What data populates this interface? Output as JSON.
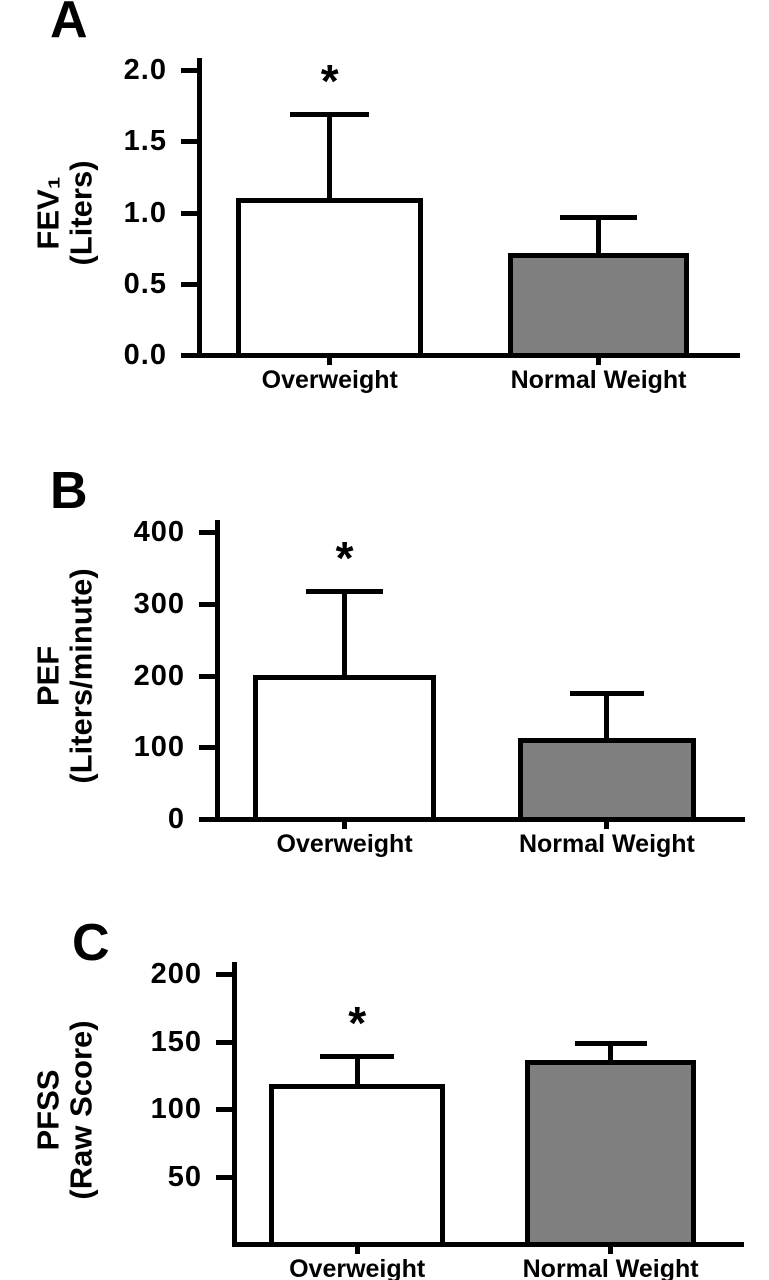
{
  "figure": {
    "background": "#ffffff",
    "axis_color": "#000000",
    "significance_marker": "*"
  },
  "chart_data": [
    {
      "type": "bar",
      "panel": "A",
      "ylabel_lines": [
        "FEV₁",
        "(Liters)"
      ],
      "ymax": 2.0,
      "yticks": [
        0.0,
        0.5,
        1.0,
        1.5,
        2.0
      ],
      "ytick_labels": [
        "0.0",
        "0.5",
        "1.0",
        "1.5",
        "2.0"
      ],
      "categories": [
        "Overweight",
        "Normal Weight"
      ],
      "values": [
        1.09,
        0.7
      ],
      "errors_upper": [
        0.6,
        0.27
      ],
      "significance": [
        "*",
        ""
      ],
      "bar_colors": [
        "#ffffff",
        "#7f7f7f"
      ],
      "grid": false,
      "legend": "none"
    },
    {
      "type": "bar",
      "panel": "B",
      "ylabel_lines": [
        "PEF",
        "(Liters/minute)"
      ],
      "ymax": 400,
      "yticks": [
        0,
        100,
        200,
        300,
        400
      ],
      "ytick_labels": [
        "0",
        "100",
        "200",
        "300",
        "400"
      ],
      "categories": [
        "Overweight",
        "Normal Weight"
      ],
      "values": [
        198,
        110
      ],
      "errors_upper": [
        120,
        66
      ],
      "significance": [
        "*",
        ""
      ],
      "bar_colors": [
        "#ffffff",
        "#7f7f7f"
      ],
      "grid": false,
      "legend": "none"
    },
    {
      "type": "bar",
      "panel": "C",
      "ylabel_lines": [
        "PFSS",
        "(Raw Score)"
      ],
      "ymax": 200,
      "yticks": [
        50,
        100,
        150,
        200
      ],
      "ytick_labels": [
        "50",
        "100",
        "150",
        "200"
      ],
      "categories": [
        "Overweight",
        "Normal Weight"
      ],
      "values": [
        117,
        135
      ],
      "errors_upper": [
        22,
        14
      ],
      "significance": [
        "*",
        ""
      ],
      "bar_colors": [
        "#ffffff",
        "#7f7f7f"
      ],
      "grid": false,
      "legend": "none"
    }
  ]
}
